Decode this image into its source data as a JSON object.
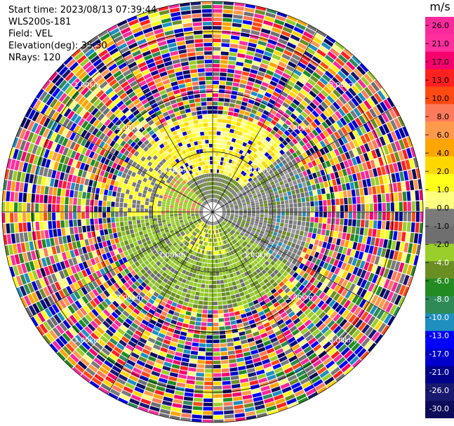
{
  "header": {
    "start_time": "Start time: 2023/08/13 07:39:44",
    "instrument": "WLS200s-181",
    "field": "Field: VEL",
    "elevation": "Elevation(deg): 35.30",
    "nrays": "NRays: 120"
  },
  "colorbar": {
    "unit": "m/s",
    "tick_labels": [
      "26.0",
      "21.0",
      "17.0",
      "13.0",
      "10.0",
      "8.0",
      "6.0",
      "4.0",
      "2.0",
      "1.0",
      "0.0",
      "-1.0",
      "-2.0",
      "-4.0",
      "-6.0",
      "-8.0",
      "-10.0",
      "-13.0",
      "-17.0",
      "-21.0",
      "-26.0",
      "-30.0"
    ],
    "colors": [
      "#f62a9b",
      "#ff2f9d",
      "#f6006e",
      "#ff2020",
      "#ff4a12",
      "#ff7a5a",
      "#ff9a4a",
      "#ffa500",
      "#ffd700",
      "#ffff1a",
      "#ffff80",
      "#7a7a7a",
      "#6f6f6f",
      "#9ace2a",
      "#6b8e23",
      "#228b22",
      "#2e8b57",
      "#1e8fbf",
      "#0000ff",
      "#0000cd",
      "#00008b",
      "#191970",
      "#0b0b5a"
    ]
  },
  "chart_data": {
    "type": "heatmap",
    "projection": "polar-ppi",
    "range_ring_labels": [
      "1.00km",
      "2.00km",
      "3.00km"
    ],
    "range_rings_km": [
      1,
      2,
      3
    ],
    "max_range_km": 3.5,
    "nrays": 120
  }
}
